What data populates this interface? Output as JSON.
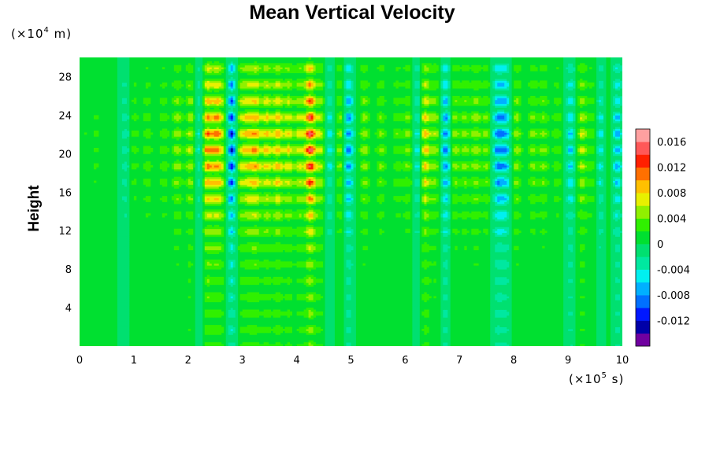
{
  "chart_data": {
    "type": "heatmap",
    "title": "Mean Vertical Velocity",
    "ylabel": "Height",
    "y_unit": {
      "prefix": "(×10",
      "exp": "4",
      "suffix": " m)"
    },
    "x_unit": {
      "prefix": "(×10",
      "exp": "5",
      "suffix": " s)"
    },
    "xlim": [
      0,
      10
    ],
    "ylim": [
      0,
      30
    ],
    "x_ticks": [
      "0",
      "1",
      "2",
      "3",
      "4",
      "5",
      "6",
      "7",
      "8",
      "9",
      "10"
    ],
    "y_ticks": [
      "4",
      "8",
      "12",
      "16",
      "20",
      "24",
      "28"
    ],
    "colorbar": {
      "ticks": [
        "0.016",
        "0.012",
        "0.008",
        "0.004",
        "0",
        "-0.004",
        "-0.008",
        "-0.012"
      ],
      "levels": [
        -0.016,
        -0.014,
        -0.012,
        -0.01,
        -0.008,
        -0.006,
        -0.004,
        -0.002,
        0,
        0.002,
        0.004,
        0.006,
        0.008,
        0.01,
        0.012,
        0.014,
        0.016,
        0.018
      ],
      "colors": [
        "#7000a0",
        "#0000a8",
        "#0018ff",
        "#0070ff",
        "#00b0ff",
        "#00f0f0",
        "#00e8a0",
        "#00e070",
        "#00e030",
        "#30f000",
        "#90f000",
        "#e8f000",
        "#ffc000",
        "#ff7000",
        "#ff2000",
        "#ff5858",
        "#ffa0a0"
      ]
    },
    "field_columns": [
      {
        "x": 0.1,
        "amplitude": 0.002
      },
      {
        "x": 0.3,
        "amplitude": 0.0025
      },
      {
        "x": 0.55,
        "amplitude": 0.002
      },
      {
        "x": 0.85,
        "amplitude": -0.004
      },
      {
        "x": 1.0,
        "amplitude": 0.0035
      },
      {
        "x": 1.25,
        "amplitude": 0.004
      },
      {
        "x": 1.55,
        "amplitude": 0.004
      },
      {
        "x": 1.8,
        "amplitude": 0.006
      },
      {
        "x": 2.05,
        "amplitude": 0.007
      },
      {
        "x": 2.2,
        "amplitude": -0.006
      },
      {
        "x": 2.35,
        "amplitude": 0.012
      },
      {
        "x": 2.52,
        "amplitude": 0.01
      },
      {
        "x": 2.65,
        "amplitude": 0.006
      },
      {
        "x": 2.8,
        "amplitude": -0.014
      },
      {
        "x": 2.95,
        "amplitude": 0.007
      },
      {
        "x": 3.1,
        "amplitude": 0.008
      },
      {
        "x": 3.25,
        "amplitude": 0.01
      },
      {
        "x": 3.45,
        "amplitude": 0.009
      },
      {
        "x": 3.65,
        "amplitude": 0.01
      },
      {
        "x": 3.85,
        "amplitude": 0.008
      },
      {
        "x": 4.05,
        "amplitude": 0.007
      },
      {
        "x": 4.25,
        "amplitude": 0.016
      },
      {
        "x": 4.45,
        "amplitude": 0.007
      },
      {
        "x": 4.6,
        "amplitude": -0.006
      },
      {
        "x": 4.8,
        "amplitude": 0.006
      },
      {
        "x": 4.95,
        "amplitude": -0.01
      },
      {
        "x": 5.25,
        "amplitude": 0.006
      },
      {
        "x": 5.55,
        "amplitude": 0.005
      },
      {
        "x": 5.85,
        "amplitude": 0.004
      },
      {
        "x": 6.05,
        "amplitude": 0.005
      },
      {
        "x": 6.25,
        "amplitude": -0.008
      },
      {
        "x": 6.35,
        "amplitude": 0.012
      },
      {
        "x": 6.55,
        "amplitude": 0.006
      },
      {
        "x": 6.75,
        "amplitude": -0.01
      },
      {
        "x": 6.9,
        "amplitude": 0.006
      },
      {
        "x": 7.1,
        "amplitude": 0.005
      },
      {
        "x": 7.3,
        "amplitude": 0.006
      },
      {
        "x": 7.5,
        "amplitude": 0.005
      },
      {
        "x": 7.7,
        "amplitude": -0.009
      },
      {
        "x": 7.85,
        "amplitude": -0.008
      },
      {
        "x": 8.05,
        "amplitude": 0.006
      },
      {
        "x": 8.35,
        "amplitude": 0.005
      },
      {
        "x": 8.55,
        "amplitude": 0.005
      },
      {
        "x": 8.8,
        "amplitude": 0.004
      },
      {
        "x": 9.05,
        "amplitude": -0.007
      },
      {
        "x": 9.25,
        "amplitude": 0.007
      },
      {
        "x": 9.45,
        "amplitude": 0.004
      },
      {
        "x": 9.6,
        "amplitude": -0.006
      },
      {
        "x": 9.75,
        "amplitude": 0.003
      },
      {
        "x": 9.9,
        "amplitude": -0.008
      }
    ]
  }
}
